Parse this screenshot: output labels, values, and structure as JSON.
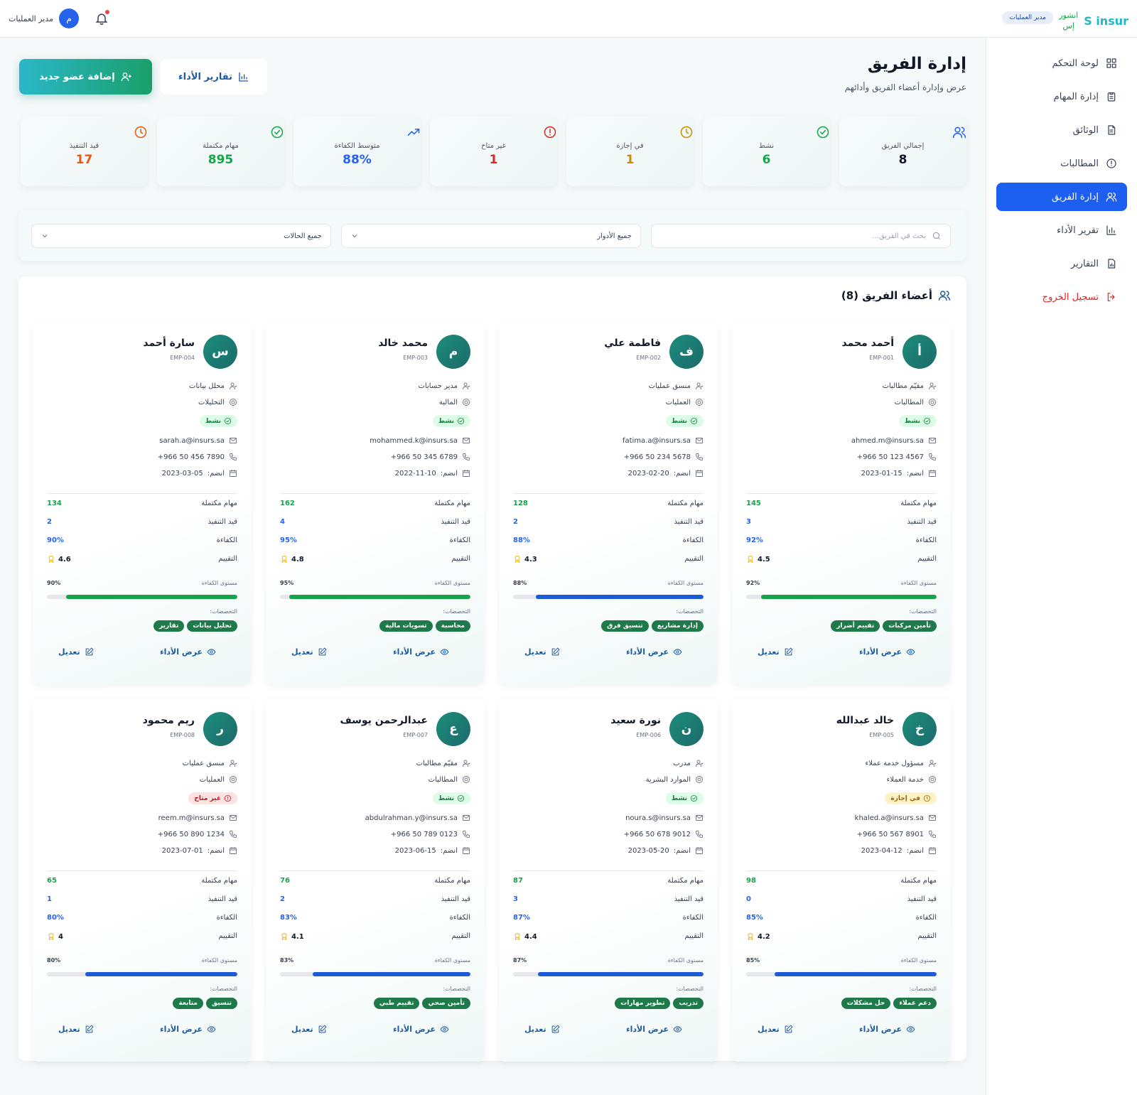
{
  "header": {
    "logo_text": "insur",
    "logo_mark": "S",
    "logo_ar_line1": "انشور",
    "logo_ar_line2": "إس",
    "role_badge": "مدير العمليات",
    "user_initial": "م",
    "user_name": "مدير العمليات"
  },
  "sidebar": {
    "items": [
      {
        "label": "لوحة التحكم",
        "icon": "grid-icon"
      },
      {
        "label": "إدارة المهام",
        "icon": "clipboard-icon"
      },
      {
        "label": "الوثائق",
        "icon": "document-icon"
      },
      {
        "label": "المطالبات",
        "icon": "alert-circle-icon"
      },
      {
        "label": "إدارة الفريق",
        "icon": "users-icon",
        "active": true
      },
      {
        "label": "تقرير الأداء",
        "icon": "bar-chart-icon"
      },
      {
        "label": "التقارير",
        "icon": "file-chart-icon"
      }
    ],
    "logout": "تسجيل الخروج"
  },
  "page": {
    "title": "إدارة الفريق",
    "subtitle": "عرض وإدارة أعضاء الفريق وأدائهم",
    "add_button": "إضافة عضو جديد",
    "reports_button": "تقارير الأداء"
  },
  "stats": [
    {
      "label": "إجمالي الفريق",
      "value": "8",
      "color": "#111827",
      "icon_color": "#2563eb",
      "icon": "users-icon"
    },
    {
      "label": "نشط",
      "value": "6",
      "color": "#16a34a",
      "icon_color": "#16a34a",
      "icon": "check-circle-icon"
    },
    {
      "label": "في إجازة",
      "value": "1",
      "color": "#ca8a04",
      "icon_color": "#ca8a04",
      "icon": "clock-icon"
    },
    {
      "label": "غير متاح",
      "value": "1",
      "color": "#dc2626",
      "icon_color": "#dc2626",
      "icon": "alert-circle-icon"
    },
    {
      "label": "متوسط الكفاءة",
      "value": "88%",
      "color": "#2563eb",
      "icon_color": "#2563eb",
      "icon": "trending-up-icon"
    },
    {
      "label": "مهام مكتملة",
      "value": "895",
      "color": "#16a34a",
      "icon_color": "#16a34a",
      "icon": "check-circle-icon"
    },
    {
      "label": "قيد التنفيذ",
      "value": "17",
      "color": "#ea580c",
      "icon_color": "#ea580c",
      "icon": "clock-icon"
    }
  ],
  "filters": {
    "search_placeholder": "بحث في الفريق...",
    "roles_selected": "جميع الأدوار",
    "status_selected": "جميع الحالات"
  },
  "team": {
    "heading": "أعضاء الفريق (8)",
    "labels": {
      "completed": "مهام مكتملة",
      "in_progress": "قيد التنفيذ",
      "efficiency": "الكفاءة",
      "rating": "التقييم",
      "level": "مستوى الكفاءة",
      "specialties": "التخصصات:",
      "view": "عرض الأداء",
      "edit": "تعديل",
      "joined_prefix": "انضم:"
    },
    "members": [
      {
        "initial": "أ",
        "name": "أحمد محمد",
        "emp": "EMP-001",
        "role": "مقيّم مطالبات",
        "dept": "المطالبات",
        "status": "نشط",
        "status_kind": "active",
        "email": "ahmed.m@insurs.sa",
        "phone": "+966 50 123 4567",
        "joined": "2023-01-15",
        "completed": "145",
        "in_progress": "3",
        "efficiency": "92%",
        "efficiency_value": 92,
        "rating": "4.5",
        "bar_color": "#16a34a",
        "tags": [
          "تأمين مركبات",
          "تقييم أضرار"
        ]
      },
      {
        "initial": "ف",
        "name": "فاطمة علي",
        "emp": "EMP-002",
        "role": "منسق عمليات",
        "dept": "العمليات",
        "status": "نشط",
        "status_kind": "active",
        "email": "fatima.a@insurs.sa",
        "phone": "+966 50 234 5678",
        "joined": "2023-02-20",
        "completed": "128",
        "in_progress": "2",
        "efficiency": "88%",
        "efficiency_value": 88,
        "rating": "4.3",
        "bar_color": "#1d5ad6",
        "tags": [
          "إدارة مشاريع",
          "تنسيق فرق"
        ]
      },
      {
        "initial": "م",
        "name": "محمد خالد",
        "emp": "EMP-003",
        "role": "مدير حسابات",
        "dept": "المالية",
        "status": "نشط",
        "status_kind": "active",
        "email": "mohammed.k@insurs.sa",
        "phone": "+966 50 345 6789",
        "joined": "2022-11-10",
        "completed": "162",
        "in_progress": "4",
        "efficiency": "95%",
        "efficiency_value": 95,
        "rating": "4.8",
        "bar_color": "#16a34a",
        "tags": [
          "محاسبة",
          "تسويات مالية"
        ]
      },
      {
        "initial": "س",
        "name": "سارة أحمد",
        "emp": "EMP-004",
        "role": "محلل بيانات",
        "dept": "التحليلات",
        "status": "نشط",
        "status_kind": "active",
        "email": "sarah.a@insurs.sa",
        "phone": "+966 50 456 7890",
        "joined": "2023-03-05",
        "completed": "134",
        "in_progress": "2",
        "efficiency": "90%",
        "efficiency_value": 90,
        "rating": "4.6",
        "bar_color": "#16a34a",
        "tags": [
          "تحليل بيانات",
          "تقارير"
        ]
      },
      {
        "initial": "خ",
        "name": "خالد عبدالله",
        "emp": "EMP-005",
        "role": "مسؤول خدمة عملاء",
        "dept": "خدمة العملاء",
        "status": "في إجازة",
        "status_kind": "leave",
        "email": "khaled.a@insurs.sa",
        "phone": "+966 50 567 8901",
        "joined": "2023-04-12",
        "completed": "98",
        "in_progress": "0",
        "efficiency": "85%",
        "efficiency_value": 85,
        "rating": "4.2",
        "bar_color": "#1d5ad6",
        "tags": [
          "دعم عملاء",
          "حل مشكلات"
        ]
      },
      {
        "initial": "ن",
        "name": "نورة سعيد",
        "emp": "EMP-006",
        "role": "مدرب",
        "dept": "الموارد البشرية",
        "status": "نشط",
        "status_kind": "active",
        "email": "noura.s@insurs.sa",
        "phone": "+966 50 678 9012",
        "joined": "2023-05-20",
        "completed": "87",
        "in_progress": "3",
        "efficiency": "87%",
        "efficiency_value": 87,
        "rating": "4.4",
        "bar_color": "#1d5ad6",
        "tags": [
          "تدريب",
          "تطوير مهارات"
        ]
      },
      {
        "initial": "ع",
        "name": "عبدالرحمن يوسف",
        "emp": "EMP-007",
        "role": "مقيّم مطالبات",
        "dept": "المطالبات",
        "status": "نشط",
        "status_kind": "active",
        "email": "abdulrahman.y@insurs.sa",
        "phone": "+966 50 789 0123",
        "joined": "2023-06-15",
        "completed": "76",
        "in_progress": "2",
        "efficiency": "83%",
        "efficiency_value": 83,
        "rating": "4.1",
        "bar_color": "#1d5ad6",
        "tags": [
          "تأمين صحي",
          "تقييم طبي"
        ]
      },
      {
        "initial": "ر",
        "name": "ريم محمود",
        "emp": "EMP-008",
        "role": "منسق عمليات",
        "dept": "العمليات",
        "status": "غير متاح",
        "status_kind": "unavailable",
        "email": "reem.m@insurs.sa",
        "phone": "+966 50 890 1234",
        "joined": "2023-07-01",
        "completed": "65",
        "in_progress": "1",
        "efficiency": "80%",
        "efficiency_value": 80,
        "rating": "4",
        "bar_color": "#1d5ad6",
        "tags": [
          "تنسيق",
          "متابعة"
        ]
      }
    ]
  }
}
